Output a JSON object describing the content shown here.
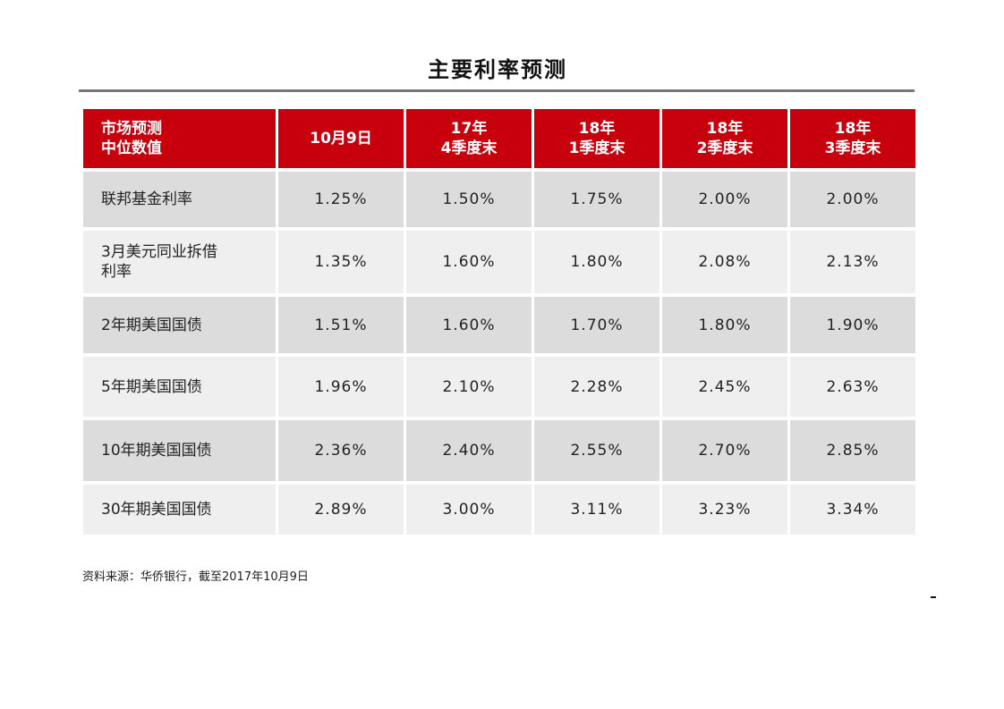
{
  "chart_data": {
    "type": "table",
    "title": "主要利率预测",
    "corner_header": [
      "市场预测",
      "中位数值"
    ],
    "columns": [
      [
        "10月9日"
      ],
      [
        "17年",
        "4季度末"
      ],
      [
        "18年",
        "1季度末"
      ],
      [
        "18年",
        "2季度末"
      ],
      [
        "18年",
        "3季度末"
      ]
    ],
    "rows": [
      {
        "label": [
          "联邦基金利率"
        ],
        "values": [
          "1.25%",
          "1.50%",
          "1.75%",
          "2.00%",
          "2.00%"
        ]
      },
      {
        "label": [
          "3月美元同业拆借",
          "利率"
        ],
        "values": [
          "1.35%",
          "1.60%",
          "1.80%",
          "2.08%",
          "2.13%"
        ]
      },
      {
        "label": [
          "2年期美国国债"
        ],
        "values": [
          "1.51%",
          "1.60%",
          "1.70%",
          "1.80%",
          "1.90%"
        ]
      },
      {
        "label": [
          "5年期美国国债"
        ],
        "values": [
          "1.96%",
          "2.10%",
          "2.28%",
          "2.45%",
          "2.63%"
        ]
      },
      {
        "label": [
          "10年期美国国债"
        ],
        "values": [
          "2.36%",
          "2.40%",
          "2.55%",
          "2.70%",
          "2.85%"
        ]
      },
      {
        "label": [
          "30年期美国国债"
        ],
        "values": [
          "2.89%",
          "3.00%",
          "3.11%",
          "3.23%",
          "3.34%"
        ]
      }
    ],
    "source": "资料来源：华侨银行，截至2017年10月9日"
  },
  "colors": {
    "header_bg": "#c8000e",
    "header_text": "#ffffff",
    "row_dark": "#dcdcdc",
    "row_light": "#efefef",
    "rule": "#777777"
  }
}
